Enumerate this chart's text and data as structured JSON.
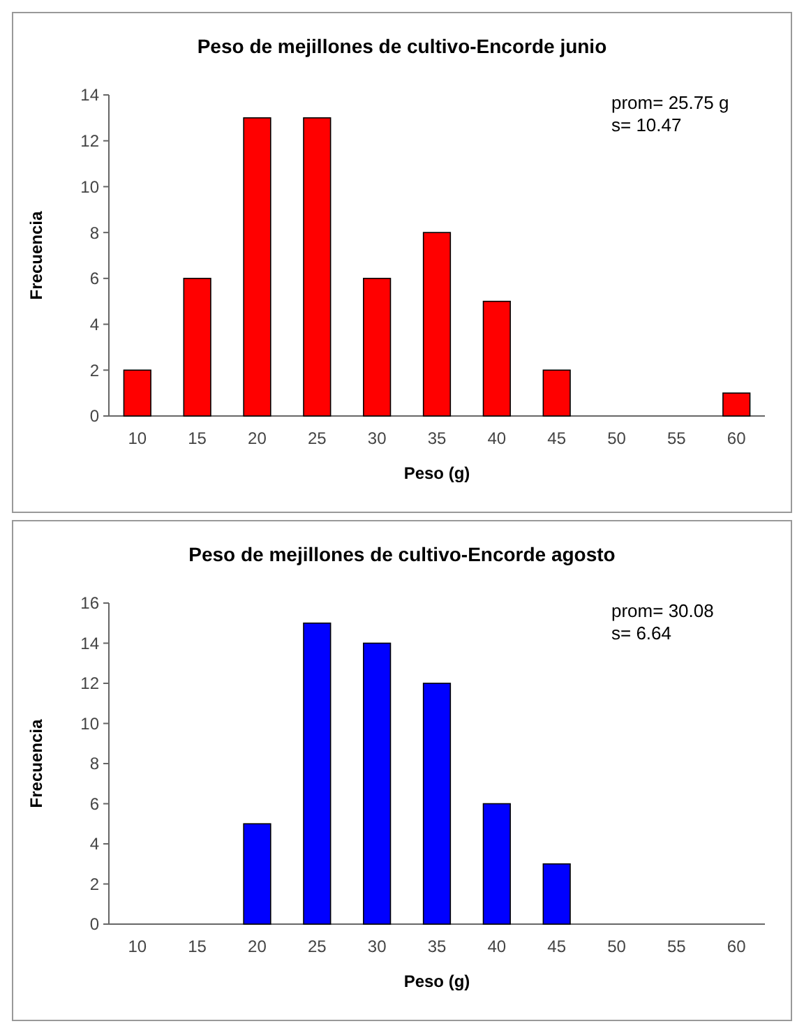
{
  "chart_data": [
    {
      "type": "bar",
      "title": "Peso de mejillones de cultivo-Encorde junio",
      "xlabel": "Peso (g)",
      "ylabel": "Frecuencia",
      "categories": [
        "10",
        "15",
        "20",
        "25",
        "30",
        "35",
        "40",
        "45",
        "50",
        "55",
        "60"
      ],
      "values": [
        2,
        6,
        13,
        13,
        6,
        8,
        5,
        2,
        0,
        0,
        1
      ],
      "color": "#ff0000",
      "ylim": [
        0,
        14
      ],
      "yticks": [
        0,
        2,
        4,
        6,
        8,
        10,
        12,
        14
      ],
      "annotations": [
        "prom= 25.75 g",
        "s= 10.47"
      ]
    },
    {
      "type": "bar",
      "title": "Peso de mejillones de cultivo-Encorde agosto",
      "xlabel": "Peso (g)",
      "ylabel": "Frecuencia",
      "categories": [
        "10",
        "15",
        "20",
        "25",
        "30",
        "35",
        "40",
        "45",
        "50",
        "55",
        "60"
      ],
      "values": [
        0,
        0,
        5,
        15,
        14,
        12,
        6,
        3,
        0,
        0,
        0
      ],
      "color": "#0000ff",
      "ylim": [
        0,
        16
      ],
      "yticks": [
        0,
        2,
        4,
        6,
        8,
        10,
        12,
        14,
        16
      ],
      "annotations": [
        "prom= 30.08",
        "s= 6.64"
      ]
    }
  ]
}
